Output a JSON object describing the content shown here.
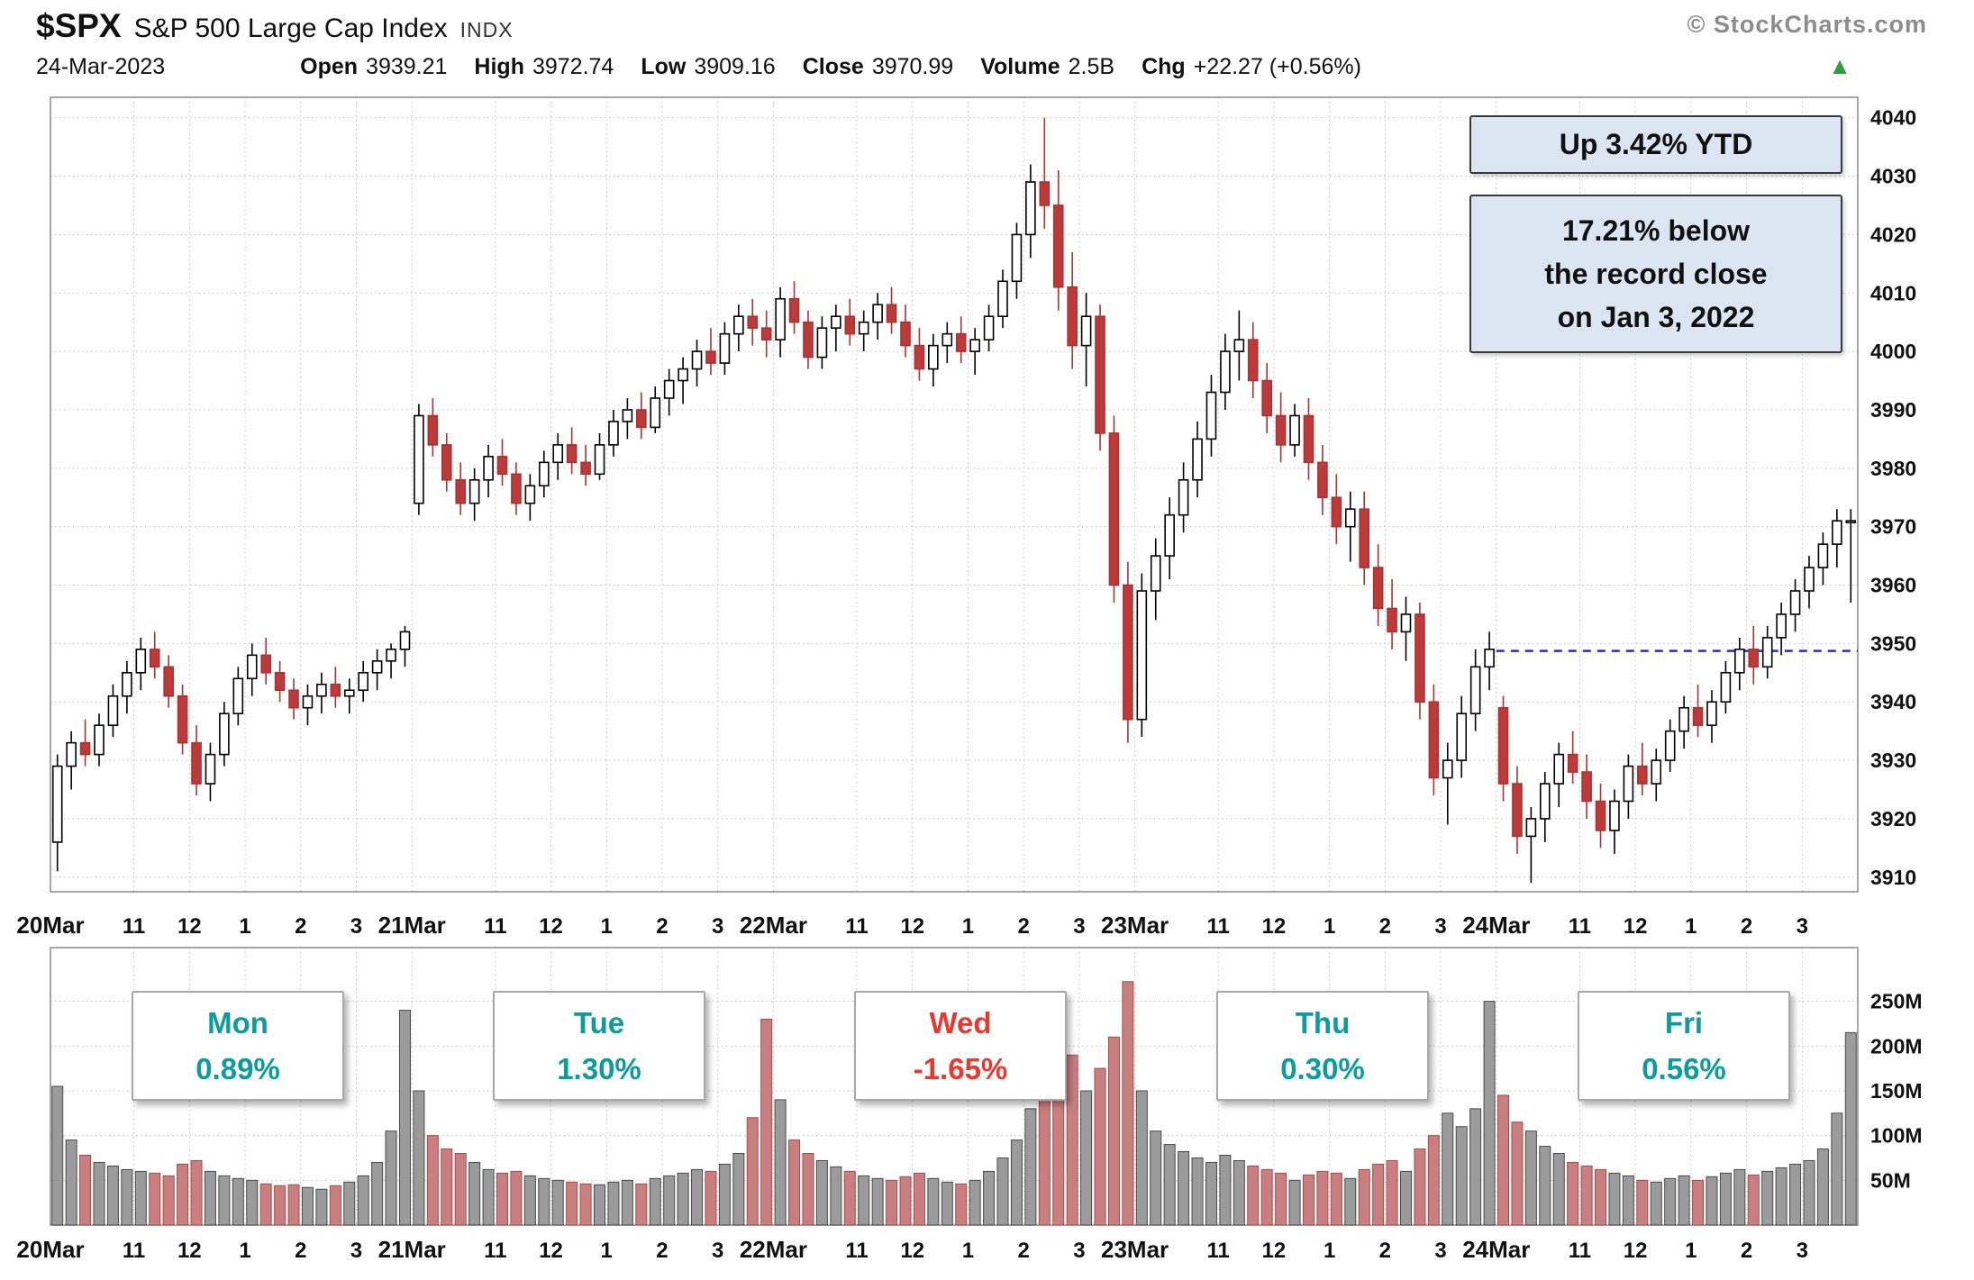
{
  "header": {
    "symbol": "$SPX",
    "index_name": "S&P 500 Large Cap Index",
    "exchange": "INDX",
    "credit": "© StockCharts.com",
    "date": "24-Mar-2023",
    "stats": {
      "open_label": "Open",
      "open": "3939.21",
      "high_label": "High",
      "high": "3972.74",
      "low_label": "Low",
      "low": "3909.16",
      "close_label": "Close",
      "close": "3970.99",
      "volume_label": "Volume",
      "volume": "2.5B",
      "chg_label": "Chg",
      "chg": "+22.27 (+0.56%)"
    },
    "direction_icon": "▲",
    "direction_color": "#2f9e38"
  },
  "annotations": {
    "box_bg": "#dce6f2",
    "ytd_box": "Up 3.42% YTD",
    "record_box_lines": [
      "17.21% below",
      "the record close",
      "on Jan 3, 2022"
    ]
  },
  "reference_line": {
    "price": 3948.72,
    "color": "#2b2bd6",
    "style": "dashed"
  },
  "day_labels": [
    {
      "day": "Mon",
      "pct": "0.89%",
      "color": "#0d9c9c"
    },
    {
      "day": "Tue",
      "pct": "1.30%",
      "color": "#0d9c9c"
    },
    {
      "day": "Wed",
      "pct": "-1.65%",
      "color": "#e8392e"
    },
    {
      "day": "Thu",
      "pct": "0.30%",
      "color": "#0d9c9c"
    },
    {
      "day": "Fri",
      "pct": "0.56%",
      "color": "#0d9c9c"
    }
  ],
  "chart_data": {
    "type": "candlestick",
    "title": "$SPX 15-minute intraday candles with volume, 20–24 Mar 2023",
    "bars_per_day": 26,
    "price_axis": {
      "min_label": 3910,
      "max_label": 4040,
      "step": 10,
      "domain": [
        3907.5,
        4043.5
      ]
    },
    "volume_axis": {
      "ticks_m": [
        50,
        100,
        150,
        200,
        250
      ],
      "scale_max_m": 310,
      "unit": "M"
    },
    "hour_labels": [
      "11",
      "12",
      "1",
      "2",
      "3"
    ],
    "hour_bar_offsets": [
      6,
      10,
      14,
      18,
      22
    ],
    "colors": {
      "up_fill": "#ffffff",
      "up_stroke": "#000000",
      "down_fill": "#bc3a39",
      "down_stroke": "#a93232",
      "vol_up_fill": "#9b9b9b",
      "vol_up_stroke": "#4a4a4a",
      "vol_down_fill": "#c97f7f",
      "vol_down_stroke": "#a94a4a",
      "grid": "#c3c3c3",
      "border": "#8a8a8a",
      "axis_text": "#111111"
    },
    "days": [
      {
        "label": "20Mar",
        "session_change_pct": 0.89,
        "candles": [
          [
            3916,
            3931,
            3911,
            3929,
            155
          ],
          [
            3929,
            3935,
            3925,
            3933,
            95
          ],
          [
            3933,
            3937,
            3929,
            3931,
            78
          ],
          [
            3931,
            3938,
            3929,
            3936,
            70
          ],
          [
            3936,
            3943,
            3934,
            3941,
            66
          ],
          [
            3941,
            3947,
            3938,
            3945,
            62
          ],
          [
            3945,
            3951,
            3942,
            3949,
            60
          ],
          [
            3949,
            3952,
            3944,
            3946,
            58
          ],
          [
            3946,
            3948,
            3939,
            3941,
            55
          ],
          [
            3941,
            3943,
            3931,
            3933,
            68
          ],
          [
            3933,
            3936,
            3924,
            3926,
            72
          ],
          [
            3926,
            3933,
            3923,
            3931,
            60
          ],
          [
            3931,
            3940,
            3929,
            3938,
            55
          ],
          [
            3938,
            3946,
            3936,
            3944,
            52
          ],
          [
            3944,
            3950,
            3941,
            3948,
            50
          ],
          [
            3948,
            3951,
            3943,
            3945,
            46
          ],
          [
            3945,
            3947,
            3940,
            3942,
            44
          ],
          [
            3942,
            3944,
            3937,
            3939,
            45
          ],
          [
            3939,
            3943,
            3936,
            3941,
            42
          ],
          [
            3941,
            3945,
            3938,
            3943,
            40
          ],
          [
            3943,
            3946,
            3939,
            3941,
            44
          ],
          [
            3941,
            3944,
            3938,
            3942,
            48
          ],
          [
            3942,
            3947,
            3940,
            3945,
            55
          ],
          [
            3945,
            3949,
            3942,
            3947,
            70
          ],
          [
            3947,
            3950,
            3944,
            3949,
            105
          ],
          [
            3949,
            3953,
            3946,
            3952,
            240
          ]
        ]
      },
      {
        "label": "21Mar",
        "session_change_pct": 1.3,
        "candles": [
          [
            3974,
            3991,
            3972,
            3989,
            150
          ],
          [
            3989,
            3992,
            3982,
            3984,
            100
          ],
          [
            3984,
            3986,
            3976,
            3978,
            85
          ],
          [
            3978,
            3981,
            3972,
            3974,
            80
          ],
          [
            3974,
            3980,
            3971,
            3978,
            70
          ],
          [
            3978,
            3984,
            3975,
            3982,
            62
          ],
          [
            3982,
            3985,
            3977,
            3979,
            58
          ],
          [
            3979,
            3981,
            3972,
            3974,
            60
          ],
          [
            3974,
            3979,
            3971,
            3977,
            55
          ],
          [
            3977,
            3983,
            3975,
            3981,
            52
          ],
          [
            3981,
            3986,
            3978,
            3984,
            50
          ],
          [
            3984,
            3987,
            3979,
            3981,
            48
          ],
          [
            3981,
            3984,
            3977,
            3979,
            46
          ],
          [
            3979,
            3986,
            3978,
            3984,
            45
          ],
          [
            3984,
            3990,
            3982,
            3988,
            48
          ],
          [
            3988,
            3992,
            3985,
            3990,
            50
          ],
          [
            3990,
            3993,
            3985,
            3987,
            46
          ],
          [
            3987,
            3994,
            3986,
            3992,
            52
          ],
          [
            3992,
            3997,
            3989,
            3995,
            55
          ],
          [
            3995,
            3999,
            3991,
            3997,
            58
          ],
          [
            3997,
            4002,
            3994,
            4000,
            62
          ],
          [
            4000,
            4004,
            3996,
            3998,
            60
          ],
          [
            3998,
            4005,
            3996,
            4003,
            68
          ],
          [
            4003,
            4008,
            4000,
            4006,
            80
          ],
          [
            4006,
            4009,
            4001,
            4004,
            120
          ],
          [
            4004,
            4007,
            3999,
            4002,
            230
          ]
        ]
      },
      {
        "label": "22Mar",
        "session_change_pct": -1.65,
        "candles": [
          [
            4002,
            4011,
            3999,
            4009,
            140
          ],
          [
            4009,
            4012,
            4003,
            4005,
            95
          ],
          [
            4005,
            4007,
            3997,
            3999,
            80
          ],
          [
            3999,
            4006,
            3997,
            4004,
            72
          ],
          [
            4004,
            4008,
            4000,
            4006,
            65
          ],
          [
            4006,
            4009,
            4001,
            4003,
            60
          ],
          [
            4003,
            4007,
            4000,
            4005,
            55
          ],
          [
            4005,
            4010,
            4002,
            4008,
            52
          ],
          [
            4008,
            4011,
            4003,
            4005,
            50
          ],
          [
            4005,
            4008,
            3999,
            4001,
            54
          ],
          [
            4001,
            4004,
            3995,
            3997,
            58
          ],
          [
            3997,
            4003,
            3994,
            4001,
            52
          ],
          [
            4001,
            4005,
            3998,
            4003,
            48
          ],
          [
            4003,
            4006,
            3998,
            4000,
            46
          ],
          [
            4000,
            4004,
            3996,
            4002,
            50
          ],
          [
            4002,
            4008,
            4000,
            4006,
            60
          ],
          [
            4006,
            4014,
            4004,
            4012,
            75
          ],
          [
            4012,
            4022,
            4009,
            4020,
            95
          ],
          [
            4020,
            4032,
            4016,
            4029,
            130
          ],
          [
            4029,
            4040,
            4021,
            4025,
            185
          ],
          [
            4025,
            4031,
            4007,
            4011,
            205
          ],
          [
            4011,
            4017,
            3997,
            4001,
            190
          ],
          [
            4001,
            4010,
            3994,
            4006,
            150
          ],
          [
            4006,
            4008,
            3983,
            3986,
            175
          ],
          [
            3986,
            3989,
            3957,
            3960,
            210
          ],
          [
            3960,
            3964,
            3933,
            3937,
            272
          ]
        ]
      },
      {
        "label": "23Mar",
        "session_change_pct": 0.3,
        "candles": [
          [
            3937,
            3962,
            3934,
            3959,
            150
          ],
          [
            3959,
            3968,
            3954,
            3965,
            105
          ],
          [
            3965,
            3975,
            3961,
            3972,
            90
          ],
          [
            3972,
            3981,
            3969,
            3978,
            82
          ],
          [
            3978,
            3988,
            3975,
            3985,
            75
          ],
          [
            3985,
            3996,
            3982,
            3993,
            70
          ],
          [
            3993,
            4003,
            3990,
            4000,
            78
          ],
          [
            4000,
            4007,
            3995,
            4002,
            72
          ],
          [
            4002,
            4005,
            3992,
            3995,
            66
          ],
          [
            3995,
            3998,
            3986,
            3989,
            62
          ],
          [
            3989,
            3993,
            3981,
            3984,
            58
          ],
          [
            3984,
            3991,
            3982,
            3989,
            50
          ],
          [
            3989,
            3992,
            3978,
            3981,
            56
          ],
          [
            3981,
            3984,
            3972,
            3975,
            60
          ],
          [
            3975,
            3979,
            3967,
            3970,
            58
          ],
          [
            3970,
            3976,
            3964,
            3973,
            52
          ],
          [
            3973,
            3976,
            3960,
            3963,
            62
          ],
          [
            3963,
            3967,
            3953,
            3956,
            68
          ],
          [
            3956,
            3961,
            3949,
            3952,
            72
          ],
          [
            3952,
            3958,
            3947,
            3955,
            60
          ],
          [
            3955,
            3957,
            3937,
            3940,
            85
          ],
          [
            3940,
            3943,
            3924,
            3927,
            100
          ],
          [
            3927,
            3933,
            3919,
            3930,
            125
          ],
          [
            3930,
            3941,
            3927,
            3938,
            110
          ],
          [
            3938,
            3949,
            3935,
            3946,
            130
          ],
          [
            3946,
            3952,
            3942,
            3949,
            250
          ]
        ]
      },
      {
        "label": "24Mar",
        "session_change_pct": 0.56,
        "candles": [
          [
            3939,
            3941,
            3923,
            3926,
            145
          ],
          [
            3926,
            3929,
            3914,
            3917,
            115
          ],
          [
            3917,
            3922,
            3909,
            3920,
            105
          ],
          [
            3920,
            3928,
            3916,
            3926,
            88
          ],
          [
            3926,
            3933,
            3922,
            3931,
            80
          ],
          [
            3931,
            3935,
            3926,
            3928,
            70
          ],
          [
            3928,
            3931,
            3920,
            3923,
            66
          ],
          [
            3923,
            3926,
            3915,
            3918,
            62
          ],
          [
            3918,
            3925,
            3914,
            3923,
            58
          ],
          [
            3923,
            3931,
            3920,
            3929,
            55
          ],
          [
            3929,
            3933,
            3924,
            3926,
            50
          ],
          [
            3926,
            3932,
            3923,
            3930,
            48
          ],
          [
            3930,
            3937,
            3928,
            3935,
            52
          ],
          [
            3935,
            3941,
            3932,
            3939,
            55
          ],
          [
            3939,
            3943,
            3934,
            3936,
            50
          ],
          [
            3936,
            3942,
            3933,
            3940,
            54
          ],
          [
            3940,
            3947,
            3938,
            3945,
            58
          ],
          [
            3945,
            3951,
            3942,
            3949,
            62
          ],
          [
            3949,
            3953,
            3943,
            3946,
            56
          ],
          [
            3946,
            3953,
            3944,
            3951,
            60
          ],
          [
            3951,
            3957,
            3948,
            3955,
            64
          ],
          [
            3955,
            3961,
            3952,
            3959,
            68
          ],
          [
            3959,
            3965,
            3956,
            3963,
            72
          ],
          [
            3963,
            3969,
            3960,
            3967,
            85
          ],
          [
            3967,
            3973,
            3963,
            3971,
            125
          ],
          [
            3971,
            3973,
            3957,
            3971,
            215
          ]
        ]
      }
    ]
  }
}
